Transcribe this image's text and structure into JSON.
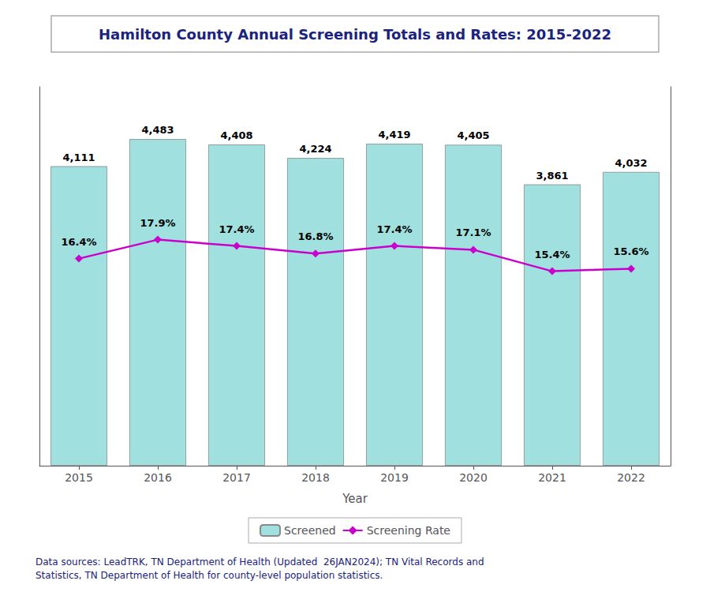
{
  "chart_data": {
    "type": "bar",
    "title": "Hamilton County Annual Screening Totals and Rates: 2015-2022",
    "xlabel": "Year",
    "categories": [
      "2015",
      "2016",
      "2017",
      "2018",
      "2019",
      "2020",
      "2021",
      "2022"
    ],
    "series": [
      {
        "name": "Screened",
        "type": "bar",
        "color": "#a0e0df",
        "values": [
          4111,
          4483,
          4408,
          4224,
          4419,
          4405,
          3861,
          4032
        ],
        "value_labels": [
          "4,111",
          "4,483",
          "4,408",
          "4,224",
          "4,419",
          "4,405",
          "3,861",
          "4,032"
        ]
      },
      {
        "name": "Screening Rate",
        "type": "line",
        "axis": "y2",
        "color": "#cc00cc",
        "marker": "diamond",
        "values": [
          16.4,
          17.9,
          17.4,
          16.8,
          17.4,
          17.1,
          15.4,
          15.6
        ],
        "value_labels": [
          "16.4%",
          "17.9%",
          "17.4%",
          "16.8%",
          "17.4%",
          "17.1%",
          "15.4%",
          "15.6%"
        ]
      }
    ],
    "ylim": [
      0,
      5200
    ],
    "y2lim": [
      0,
      30
    ],
    "tick_labels": "x",
    "grid": false,
    "legend": "bottom",
    "data_labels": true,
    "annotations": [
      "Data sources: LeadTRK, TN Department of Health (Updated  26JAN2024); TN Vital Records and\nStatistics, TN Department of Health for county-level population statistics."
    ]
  }
}
